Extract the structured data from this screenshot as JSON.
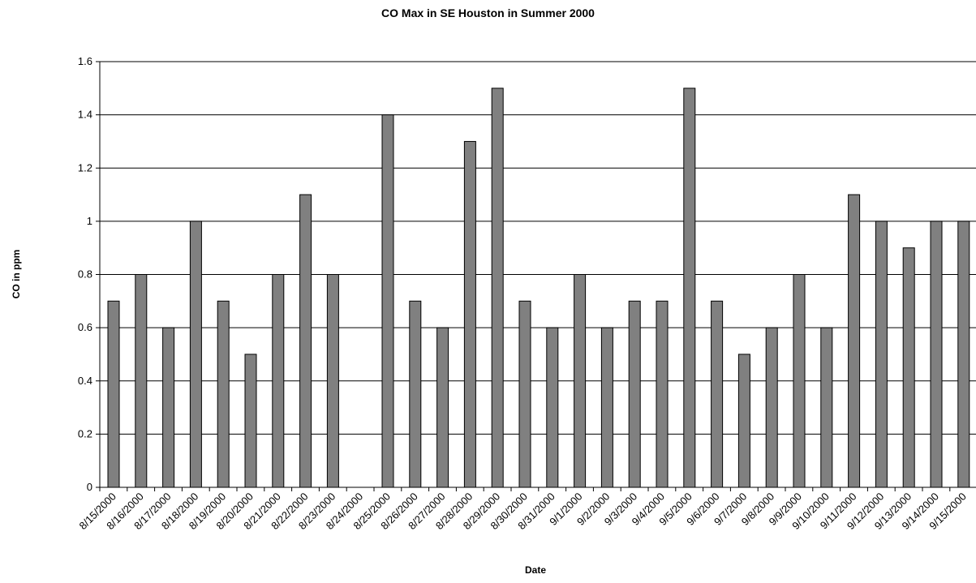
{
  "chart_data": {
    "type": "bar",
    "title": "CO Max in SE Houston in Summer 2000",
    "xlabel": "Date",
    "ylabel": "CO in ppm",
    "ylim": [
      0,
      1.6
    ],
    "yticks": [
      "0",
      "0.2",
      "0.4",
      "0.6",
      "0.8",
      "1",
      "1.2",
      "1.4",
      "1.6"
    ],
    "grid": true,
    "bar_color": "#808080",
    "categories": [
      "8/15/2000",
      "8/16/2000",
      "8/17/2000",
      "8/18/2000",
      "8/19/2000",
      "8/20/2000",
      "8/21/2000",
      "8/22/2000",
      "8/23/2000",
      "8/24/2000",
      "8/25/2000",
      "8/26/2000",
      "8/27/2000",
      "8/28/2000",
      "8/29/2000",
      "8/30/2000",
      "8/31/2000",
      "9/1/2000",
      "9/2/2000",
      "9/3/2000",
      "9/4/2000",
      "9/5/2000",
      "9/6/2000",
      "9/7/2000",
      "9/8/2000",
      "9/9/2000",
      "9/10/2000",
      "9/11/2000",
      "9/12/2000",
      "9/13/2000",
      "9/14/2000",
      "9/15/2000"
    ],
    "values": [
      0.7,
      0.8,
      0.6,
      1.0,
      0.7,
      0.5,
      0.8,
      1.1,
      0.8,
      null,
      1.4,
      0.7,
      0.6,
      1.3,
      1.5,
      0.7,
      0.6,
      0.8,
      0.6,
      0.7,
      0.7,
      1.5,
      0.7,
      0.5,
      0.6,
      0.8,
      0.6,
      1.1,
      1.0,
      0.9,
      1.0,
      1.0
    ]
  }
}
